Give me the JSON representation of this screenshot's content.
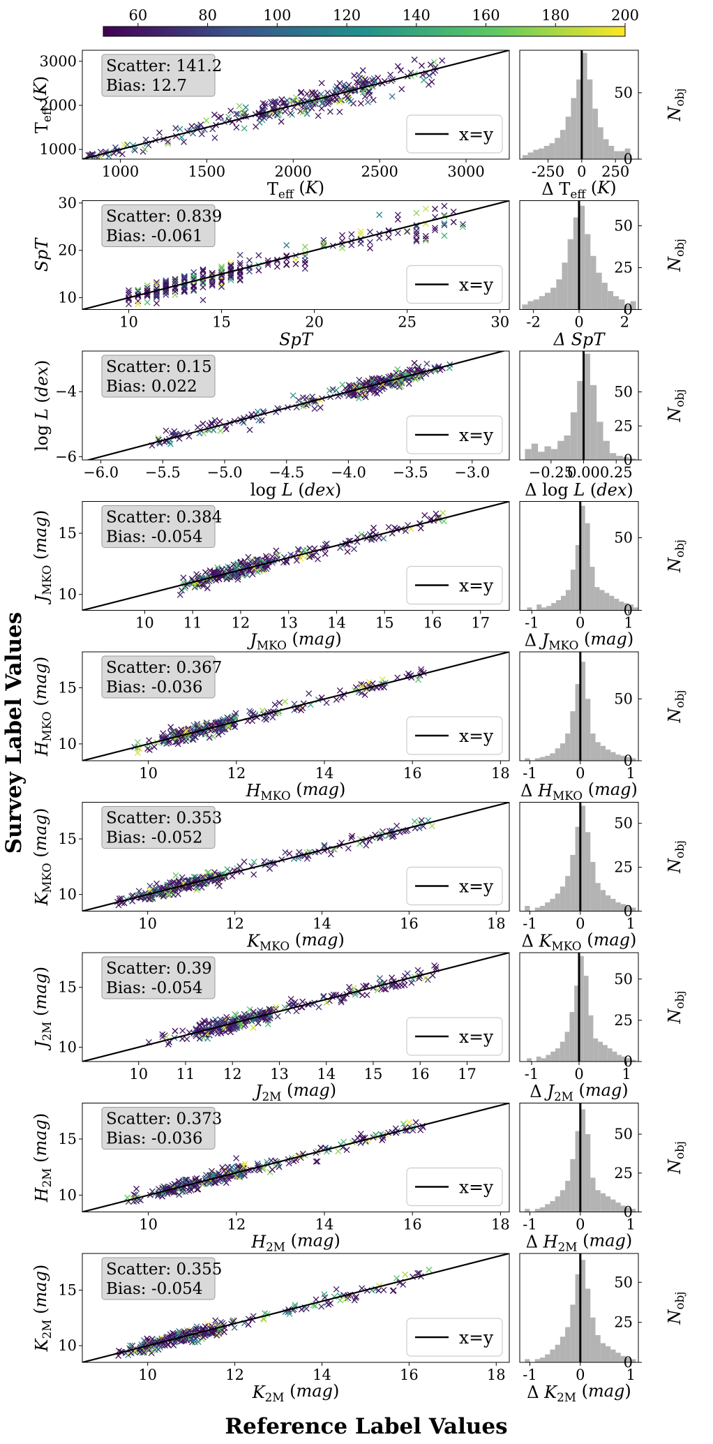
{
  "figure": {
    "y_super_label": "Survey Label Values",
    "x_super_label": "Reference Label Values"
  },
  "colorbar": {
    "range": [
      50,
      200
    ],
    "ticks": [
      60,
      80,
      100,
      120,
      140,
      160,
      180,
      200
    ],
    "colormap": [
      "#440154",
      "#3b528b",
      "#21918c",
      "#5ec962",
      "#fde725"
    ]
  },
  "colors": {
    "hist_fill": "#b3b3b3",
    "line": "#000000",
    "stats_box": "#d9d9d9"
  },
  "chart_data": [
    {
      "type": "scatter",
      "panel": "teff",
      "xlabel": "T_eff (K)",
      "ylabel": "T_eff (K)",
      "xlim": [
        780,
        3250
      ],
      "ylim": [
        780,
        3250
      ],
      "xticks": [
        1000,
        1500,
        2000,
        2500,
        3000
      ],
      "yticks": [
        1000,
        2000,
        3000
      ],
      "stats": {
        "scatter": "Scatter: 141.2",
        "bias": "Bias: 12.7"
      },
      "legend": "x=y",
      "points_summary": {
        "n": 300,
        "x_range": [
          800,
          2900
        ],
        "rel_spread": 0.07,
        "dense_range": [
          1800,
          2500
        ]
      },
      "hist": {
        "xlabel": "Δ T_eff (K)",
        "ylabel": "N_obj",
        "xlim": [
          -460,
          420
        ],
        "ylim": [
          0,
          82
        ],
        "xticks": [
          -250,
          0,
          250
        ],
        "yticks": [
          0,
          50
        ],
        "bin_edges": [
          -440,
          -400,
          -360,
          -320,
          -280,
          -240,
          -200,
          -160,
          -120,
          -80,
          -40,
          0,
          40,
          80,
          120,
          160,
          200,
          240,
          280,
          320,
          360,
          400
        ],
        "counts": [
          3,
          5,
          7,
          8,
          10,
          12,
          16,
          22,
          32,
          46,
          60,
          80,
          60,
          38,
          24,
          15,
          10,
          6,
          6,
          8,
          0
        ]
      }
    },
    {
      "type": "scatter",
      "panel": "spt",
      "xlabel": "SpT",
      "ylabel": "SpT",
      "xlim": [
        7.5,
        30.5
      ],
      "ylim": [
        7.5,
        30.5
      ],
      "xticks": [
        10,
        15,
        20,
        25,
        30
      ],
      "yticks": [
        10,
        20,
        30
      ],
      "stats": {
        "scatter": "Scatter: 0.839",
        "bias": "Bias: -0.061"
      },
      "legend": "x=y",
      "points_summary": {
        "n": 280,
        "x_range": [
          10,
          28
        ],
        "rel_spread": 0.08,
        "dense_range": [
          10,
          16
        ],
        "discrete": true
      },
      "hist": {
        "xlabel": "Δ SpT",
        "ylabel": "N_obj",
        "xlim": [
          -2.6,
          2.6
        ],
        "ylim": [
          0,
          65
        ],
        "xticks": [
          -2,
          0,
          2
        ],
        "yticks": [
          0,
          25,
          50
        ],
        "bin_edges": [
          -2.5,
          -2.25,
          -2.0,
          -1.75,
          -1.5,
          -1.25,
          -1.0,
          -0.75,
          -0.5,
          -0.25,
          0.0,
          0.25,
          0.5,
          0.75,
          1.0,
          1.25,
          1.5,
          1.75,
          2.0,
          2.25,
          2.5
        ],
        "counts": [
          3,
          5,
          6,
          8,
          10,
          13,
          18,
          28,
          42,
          55,
          62,
          45,
          32,
          22,
          16,
          11,
          8,
          6,
          3,
          5
        ]
      }
    },
    {
      "type": "scatter",
      "panel": "logl",
      "xlabel": "log L (dex)",
      "ylabel": "log L (dex)",
      "xlim": [
        -6.15,
        -2.7
      ],
      "ylim": [
        -6.1,
        -2.75
      ],
      "xticks": [
        -6.0,
        -5.5,
        -5.0,
        -4.5,
        -4.0,
        -3.5,
        -3.0
      ],
      "yticks": [
        -6,
        -4
      ],
      "xtick_labels": [
        "−6.0",
        "−5.5",
        "−5.0",
        "−4.5",
        "−4.0",
        "−3.5",
        "−3.0"
      ],
      "ytick_labels": [
        "−6",
        "−4"
      ],
      "stats": {
        "scatter": "Scatter: 0.15",
        "bias": "Bias: 0.022"
      },
      "legend": "x=y",
      "points_summary": {
        "n": 300,
        "x_range": [
          -5.6,
          -3.15
        ],
        "abs_spread": 0.12,
        "dense_range": [
          -4.0,
          -3.4
        ]
      },
      "hist": {
        "xlabel": "Δ log L (dex)",
        "ylabel": "N_obj",
        "xlim": [
          -0.49,
          0.42
        ],
        "ylim": [
          0,
          80
        ],
        "xticks": [
          -0.25,
          0.0,
          0.25
        ],
        "yticks": [
          0,
          25,
          50
        ],
        "xtick_labels": [
          "−0.25",
          "0.00",
          "0.25"
        ],
        "bin_edges": [
          -0.45,
          -0.4,
          -0.35,
          -0.3,
          -0.25,
          -0.2,
          -0.15,
          -0.1,
          -0.05,
          0.0,
          0.05,
          0.1,
          0.15,
          0.2,
          0.25,
          0.3,
          0.35,
          0.4
        ],
        "counts": [
          8,
          12,
          6,
          10,
          8,
          14,
          18,
          35,
          58,
          78,
          55,
          28,
          14,
          5,
          3,
          2,
          1
        ]
      }
    },
    {
      "type": "scatter",
      "panel": "jmko",
      "xlabel": "J_MKO (mag)",
      "ylabel": "J_MKO (mag)",
      "xlim": [
        8.7,
        17.6
      ],
      "ylim": [
        8.7,
        17.6
      ],
      "xticks": [
        10,
        11,
        12,
        13,
        14,
        15,
        16,
        17
      ],
      "yticks": [
        10,
        15
      ],
      "stats": {
        "scatter": "Scatter: 0.384",
        "bias": "Bias: -0.054"
      },
      "legend": "x=y",
      "points_summary": {
        "n": 300,
        "x_range": [
          10.7,
          16.3
        ],
        "abs_spread": 0.3,
        "dense_range": [
          11.0,
          12.6
        ]
      },
      "hist": {
        "xlabel": "Δ J_MKO (mag)",
        "ylabel": "N_obj",
        "xlim": [
          -1.25,
          1.2
        ],
        "ylim": [
          0,
          75
        ],
        "xticks": [
          -1,
          0,
          1
        ],
        "yticks": [
          0,
          50
        ],
        "bin_edges": [
          -1.2,
          -1.1,
          -1.0,
          -0.9,
          -0.8,
          -0.7,
          -0.6,
          -0.5,
          -0.4,
          -0.3,
          -0.2,
          -0.1,
          0.0,
          0.1,
          0.2,
          0.3,
          0.4,
          0.5,
          0.6,
          0.7,
          0.8,
          0.9,
          1.0,
          1.1,
          1.2
        ],
        "counts": [
          0,
          2,
          0,
          4,
          2,
          3,
          5,
          7,
          10,
          14,
          28,
          45,
          72,
          60,
          30,
          16,
          14,
          12,
          10,
          8,
          6,
          5,
          4,
          2
        ]
      }
    },
    {
      "type": "scatter",
      "panel": "hmko",
      "xlabel": "H_MKO (mag)",
      "ylabel": "H_MKO (mag)",
      "xlim": [
        8.5,
        18.2
      ],
      "ylim": [
        8.5,
        18.2
      ],
      "xticks": [
        10,
        12,
        14,
        16,
        18
      ],
      "yticks": [
        10,
        15
      ],
      "stats": {
        "scatter": "Scatter: 0.367",
        "bias": "Bias: -0.036"
      },
      "legend": "x=y",
      "points_summary": {
        "n": 300,
        "x_range": [
          9.6,
          16.3
        ],
        "abs_spread": 0.3,
        "dense_range": [
          10.3,
          12.0
        ]
      },
      "hist": {
        "xlabel": "Δ H_MKO (mag)",
        "ylabel": "N_obj",
        "xlim": [
          -1.2,
          1.15
        ],
        "ylim": [
          0,
          88
        ],
        "xticks": [
          -1,
          0,
          1
        ],
        "yticks": [
          0,
          50
        ],
        "bin_edges": [
          -1.1,
          -1.0,
          -0.9,
          -0.8,
          -0.7,
          -0.6,
          -0.5,
          -0.4,
          -0.3,
          -0.2,
          -0.1,
          0.0,
          0.1,
          0.2,
          0.3,
          0.4,
          0.5,
          0.6,
          0.7,
          0.8,
          0.9,
          1.0,
          1.1
        ],
        "counts": [
          2,
          0,
          2,
          3,
          4,
          6,
          10,
          14,
          22,
          40,
          62,
          80,
          50,
          22,
          15,
          12,
          9,
          7,
          5,
          4,
          3,
          2
        ]
      }
    },
    {
      "type": "scatter",
      "panel": "kmko",
      "xlabel": "K_MKO (mag)",
      "ylabel": "K_MKO (mag)",
      "xlim": [
        8.5,
        18.3
      ],
      "ylim": [
        8.5,
        18.3
      ],
      "xticks": [
        10,
        12,
        14,
        16,
        18
      ],
      "yticks": [
        10,
        15
      ],
      "stats": {
        "scatter": "Scatter: 0.353",
        "bias": "Bias: -0.052"
      },
      "legend": "x=y",
      "points_summary": {
        "n": 300,
        "x_range": [
          9.3,
          16.6
        ],
        "abs_spread": 0.3,
        "dense_range": [
          9.8,
          11.8
        ]
      },
      "hist": {
        "xlabel": "Δ K_MKO (mag)",
        "ylabel": "N_obj",
        "xlim": [
          -1.2,
          1.15
        ],
        "ylim": [
          0,
          62
        ],
        "xticks": [
          -1,
          0,
          1
        ],
        "yticks": [
          0,
          25,
          50
        ],
        "bin_edges": [
          -1.1,
          -1.0,
          -0.9,
          -0.8,
          -0.7,
          -0.6,
          -0.5,
          -0.4,
          -0.3,
          -0.2,
          -0.1,
          0.0,
          0.1,
          0.2,
          0.3,
          0.4,
          0.5,
          0.6,
          0.7,
          0.8,
          0.9,
          1.0,
          1.1
        ],
        "counts": [
          3,
          0,
          2,
          3,
          5,
          7,
          10,
          14,
          20,
          32,
          48,
          60,
          45,
          28,
          16,
          12,
          9,
          7,
          5,
          4,
          3,
          2
        ]
      }
    },
    {
      "type": "scatter",
      "panel": "j2m",
      "xlabel": "J_2M (mag)",
      "ylabel": "J_2M (mag)",
      "xlim": [
        8.8,
        17.9
      ],
      "ylim": [
        8.8,
        17.9
      ],
      "xticks": [
        10,
        11,
        12,
        13,
        14,
        15,
        16,
        17
      ],
      "yticks": [
        10,
        15
      ],
      "stats": {
        "scatter": "Scatter: 0.39",
        "bias": "Bias: -0.054"
      },
      "legend": "x=y",
      "points_summary": {
        "n": 300,
        "x_range": [
          10.2,
          16.4
        ],
        "abs_spread": 0.3,
        "dense_range": [
          11.2,
          12.8
        ]
      },
      "hist": {
        "xlabel": "Δ J_2M (mag)",
        "ylabel": "N_obj",
        "xlim": [
          -1.25,
          1.25
        ],
        "ylim": [
          0,
          66
        ],
        "xticks": [
          -1,
          0,
          1
        ],
        "yticks": [
          0,
          25,
          50
        ],
        "bin_edges": [
          -1.2,
          -1.1,
          -1.0,
          -0.9,
          -0.8,
          -0.7,
          -0.6,
          -0.5,
          -0.4,
          -0.3,
          -0.2,
          -0.1,
          0.0,
          0.1,
          0.2,
          0.3,
          0.4,
          0.5,
          0.6,
          0.7,
          0.8,
          0.9,
          1.0,
          1.1,
          1.2
        ],
        "counts": [
          0,
          2,
          0,
          3,
          2,
          4,
          6,
          8,
          12,
          18,
          30,
          46,
          64,
          52,
          28,
          14,
          12,
          10,
          8,
          6,
          4,
          3,
          2,
          1
        ]
      }
    },
    {
      "type": "scatter",
      "panel": "h2m",
      "xlabel": "H_2M (mag)",
      "ylabel": "H_2M (mag)",
      "xlim": [
        8.5,
        18.2
      ],
      "ylim": [
        8.5,
        18.2
      ],
      "xticks": [
        10,
        12,
        14,
        16,
        18
      ],
      "yticks": [
        10,
        15
      ],
      "stats": {
        "scatter": "Scatter: 0.373",
        "bias": "Bias: -0.036"
      },
      "legend": "x=y",
      "points_summary": {
        "n": 300,
        "x_range": [
          9.5,
          16.3
        ],
        "abs_spread": 0.3,
        "dense_range": [
          10.3,
          12.2
        ]
      },
      "hist": {
        "xlabel": "Δ H_2M (mag)",
        "ylabel": "N_obj",
        "xlim": [
          -1.2,
          1.15
        ],
        "ylim": [
          0,
          70
        ],
        "xticks": [
          -1,
          0,
          1
        ],
        "yticks": [
          0,
          25,
          50
        ],
        "bin_edges": [
          -1.1,
          -1.0,
          -0.9,
          -0.8,
          -0.7,
          -0.6,
          -0.5,
          -0.4,
          -0.3,
          -0.2,
          -0.1,
          0.0,
          0.1,
          0.2,
          0.3,
          0.4,
          0.5,
          0.6,
          0.7,
          0.8,
          0.9,
          1.0,
          1.1
        ],
        "counts": [
          2,
          0,
          2,
          3,
          5,
          7,
          10,
          14,
          20,
          34,
          52,
          66,
          50,
          22,
          14,
          12,
          10,
          8,
          6,
          4,
          3,
          2
        ]
      }
    },
    {
      "type": "scatter",
      "panel": "k2m",
      "xlabel": "K_2M (mag)",
      "ylabel": "K_2M (mag)",
      "xlim": [
        8.5,
        18.3
      ],
      "ylim": [
        8.5,
        18.3
      ],
      "xticks": [
        10,
        12,
        14,
        16,
        18
      ],
      "yticks": [
        10,
        15
      ],
      "stats": {
        "scatter": "Scatter: 0.355",
        "bias": "Bias: -0.054"
      },
      "legend": "x=y",
      "points_summary": {
        "n": 300,
        "x_range": [
          9.3,
          16.5
        ],
        "abs_spread": 0.3,
        "dense_range": [
          9.8,
          11.8
        ]
      },
      "hist": {
        "xlabel": "Δ K_2M (mag)",
        "ylabel": "N_obj",
        "xlim": [
          -1.2,
          1.15
        ],
        "ylim": [
          0,
          68
        ],
        "xticks": [
          -1,
          0,
          1
        ],
        "yticks": [
          0,
          25,
          50
        ],
        "bin_edges": [
          -1.1,
          -1.0,
          -0.9,
          -0.8,
          -0.7,
          -0.6,
          -0.5,
          -0.4,
          -0.3,
          -0.2,
          -0.1,
          0.0,
          0.1,
          0.2,
          0.3,
          0.4,
          0.5,
          0.6,
          0.7,
          0.8,
          0.9,
          1.0,
          1.1
        ],
        "counts": [
          2,
          0,
          2,
          3,
          5,
          8,
          11,
          16,
          22,
          36,
          55,
          64,
          46,
          28,
          17,
          12,
          10,
          8,
          6,
          4,
          3,
          2
        ]
      }
    }
  ]
}
